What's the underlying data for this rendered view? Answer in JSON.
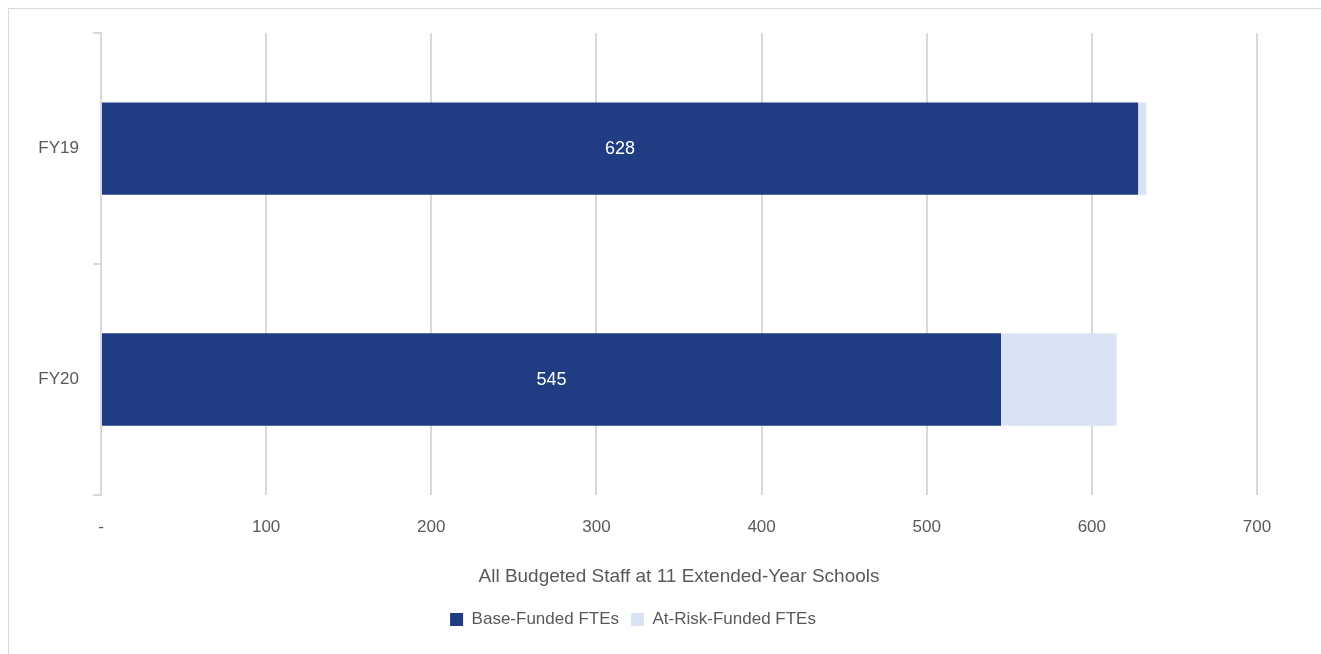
{
  "chart_data": {
    "type": "bar",
    "orientation": "horizontal",
    "stacked": true,
    "categories": [
      "FY19",
      "FY20"
    ],
    "series": [
      {
        "name": "Base-Funded FTEs",
        "color": "#203c82",
        "values": [
          628,
          545
        ],
        "value_labels": [
          "628",
          "545"
        ]
      },
      {
        "name": "At-Risk-Funded FTEs",
        "color": "#dae3f3",
        "values": [
          5,
          70
        ]
      }
    ],
    "xlabel": "All Budgeted Staff at 11 Extended-Year Schools",
    "xlim": [
      0,
      700
    ],
    "xticks": [
      {
        "value": 0,
        "label": "-"
      },
      100,
      200,
      300,
      400,
      500,
      600,
      700
    ],
    "grid": "x",
    "legend": "bottom"
  }
}
